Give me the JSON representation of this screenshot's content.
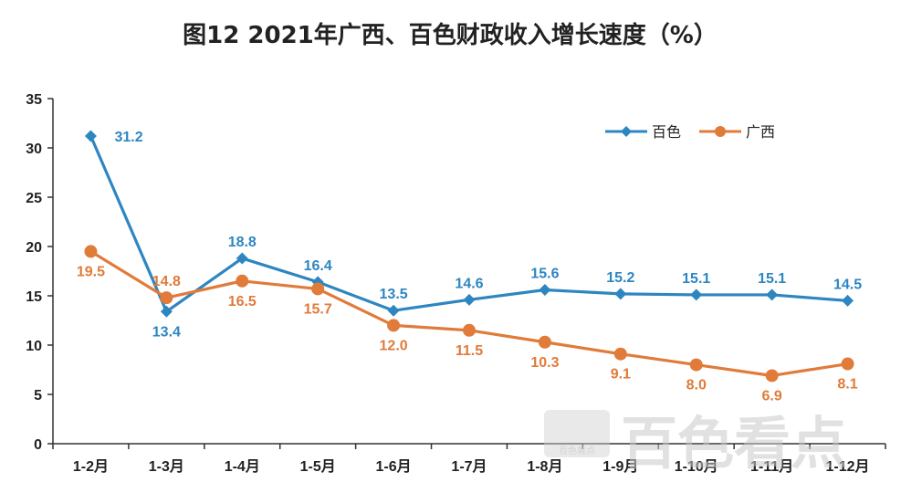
{
  "chart_data": {
    "type": "line",
    "title": "图12  2021年广西、百色财政收入增长速度（%）",
    "categories": [
      "1-2月",
      "1-3月",
      "1-4月",
      "1-5月",
      "1-6月",
      "1-7月",
      "1-8月",
      "1-9月",
      "1-10月",
      "1-11月",
      "1-12月"
    ],
    "ylim": [
      0,
      35
    ],
    "yticks": [
      0,
      5,
      10,
      15,
      20,
      25,
      30,
      35
    ],
    "grid": false,
    "legend_position": "top-right",
    "series": [
      {
        "name": "百色",
        "color": "#2e86c1",
        "marker": "diamond",
        "values": [
          31.2,
          13.4,
          18.8,
          16.4,
          13.5,
          14.6,
          15.6,
          15.2,
          15.1,
          15.1,
          14.5
        ]
      },
      {
        "name": "广西",
        "color": "#e07b39",
        "marker": "circle",
        "values": [
          19.5,
          14.8,
          16.5,
          15.7,
          12.0,
          11.5,
          10.3,
          9.1,
          8.0,
          6.9,
          8.1
        ]
      }
    ]
  },
  "watermark": {
    "text": "百色看点",
    "small_text": "百色看点"
  }
}
